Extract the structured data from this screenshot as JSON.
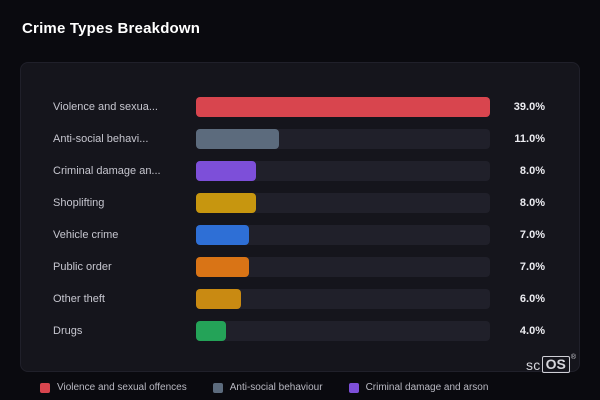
{
  "page": {
    "title": "Crime Types Breakdown",
    "background": "#0a0a0f",
    "card_background": "#15151c"
  },
  "chart_data": {
    "type": "bar",
    "orientation": "horizontal",
    "title": "Crime Types Breakdown",
    "categories": [
      "Violence and sexua...",
      "Anti-social behavi...",
      "Criminal damage an...",
      "Shoplifting",
      "Vehicle crime",
      "Public order",
      "Other theft",
      "Drugs"
    ],
    "values": [
      39.0,
      11.0,
      8.0,
      8.0,
      7.0,
      7.0,
      6.0,
      4.0
    ],
    "value_labels": [
      "39.0%",
      "11.0%",
      "8.0%",
      "8.0%",
      "7.0%",
      "7.0%",
      "6.0%",
      "4.0%"
    ],
    "bar_colors": [
      "#d8454e",
      "#5c6b7d",
      "#7d4fd9",
      "#c7960f",
      "#2e6fd6",
      "#d97416",
      "#c98a12",
      "#24a358"
    ],
    "xlim": [
      0,
      39
    ],
    "track_color": "#20202a",
    "legend_position": "bottom",
    "grid": false
  },
  "legend": {
    "items": [
      {
        "label": "Violence and sexual offences",
        "color": "#d8454e"
      },
      {
        "label": "Anti-social behaviour",
        "color": "#5c6b7d"
      },
      {
        "label": "Criminal damage and arson",
        "color": "#7d4fd9"
      }
    ]
  },
  "branding": {
    "prefix": "sc",
    "suffix": "OS",
    "registered": "®"
  }
}
